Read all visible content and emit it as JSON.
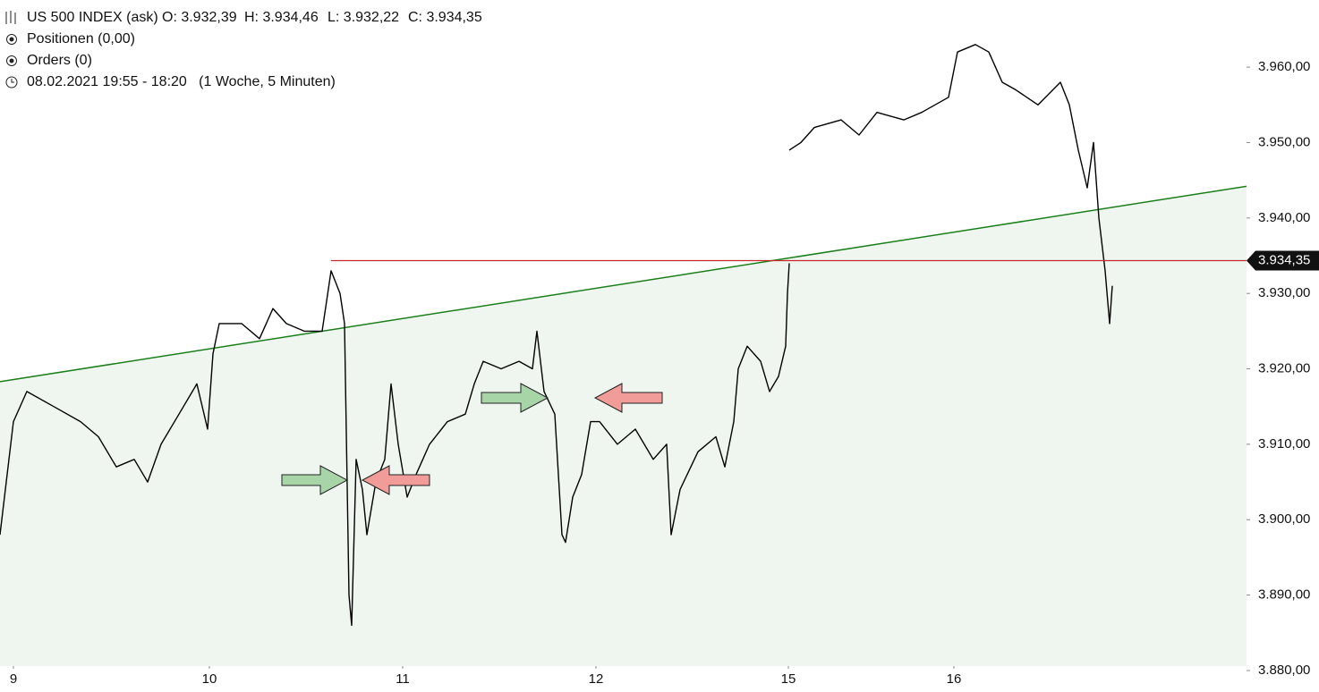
{
  "chart_data": {
    "type": "line",
    "title": "US 500 INDEX (ask)",
    "info": [
      "O: 3.932,39",
      "H: 3.934,46",
      "L: 3.932,22",
      "C: 3.934,35"
    ],
    "positions": "Positionen (0,00)",
    "orders": "Orders (0)",
    "period": "08.02.2021 19:55 - 18:20   (1 Woche, 5 Minuten)",
    "xlim": [
      0,
      1393
    ],
    "ylim": [
      3880,
      3968.9
    ],
    "xticks": [
      {
        "value": 15,
        "label": "9"
      },
      {
        "value": 234,
        "label": "10"
      },
      {
        "value": 450,
        "label": "11"
      },
      {
        "value": 666,
        "label": "12"
      },
      {
        "value": 881,
        "label": "15"
      },
      {
        "value": 1066,
        "label": "16"
      }
    ],
    "yticks": [
      {
        "value": 3880,
        "label": "3.880,00"
      },
      {
        "value": 3890,
        "label": "3.890,00"
      },
      {
        "value": 3900,
        "label": "3.900,00"
      },
      {
        "value": 3910,
        "label": "3.910,00"
      },
      {
        "value": 3920,
        "label": "3.920,00"
      },
      {
        "value": 3930,
        "label": "3.930,00"
      },
      {
        "value": 3940,
        "label": "3.940,00"
      },
      {
        "value": 3950,
        "label": "3.950,00"
      },
      {
        "value": 3960,
        "label": "3.960,00"
      }
    ],
    "x": [
      0,
      15,
      30,
      60,
      90,
      110,
      130,
      150,
      165,
      180,
      200,
      220,
      232,
      238,
      245,
      270,
      290,
      305,
      320,
      340,
      360,
      370,
      380,
      385,
      390,
      393,
      398,
      405,
      410,
      420,
      430,
      437,
      445,
      455,
      465,
      480,
      500,
      520,
      530,
      540,
      560,
      580,
      595,
      600,
      608,
      620,
      628,
      632,
      640,
      650,
      660,
      670,
      690,
      710,
      730,
      745,
      750,
      760,
      780,
      800,
      810,
      820,
      825,
      835,
      850,
      860,
      870,
      878,
      880,
      882,
      882,
      882,
      895,
      910,
      940,
      960,
      980,
      1010,
      1030,
      1060,
      1070,
      1090,
      1105,
      1120,
      1135,
      1160,
      1185,
      1195,
      1205,
      1215,
      1222,
      1228,
      1235,
      1240,
      1243
    ],
    "series": [
      {
        "name": "US 500 INDEX (ask)",
        "color": "#000000",
        "values": [
          3898,
          3913,
          3917,
          3915,
          3913,
          3911,
          3907,
          3908,
          3905,
          3910,
          3914,
          3918,
          3912,
          3922,
          3926,
          3926,
          3924,
          3928,
          3926,
          3925,
          3925,
          3933,
          3930,
          3926,
          3890,
          3886,
          3908,
          3904,
          3898,
          3905,
          3908,
          3918,
          3910,
          3903,
          3906,
          3910,
          3913,
          3914,
          3918,
          3921,
          3920,
          3921,
          3920,
          3925,
          3917,
          3914,
          3898,
          3897,
          3903,
          3906,
          3913,
          3913,
          3910,
          3912,
          3908,
          3910,
          3898,
          3904,
          3909,
          3911,
          3907,
          3913,
          3920,
          3923,
          3921,
          3917,
          3919,
          3923,
          3930,
          3934,
          null,
          3949,
          3950,
          3952,
          3953,
          3951,
          3954,
          3953,
          3954,
          3956,
          3962,
          3963,
          3962,
          3958,
          3957,
          3955,
          3958,
          3955,
          3949,
          3944,
          3950,
          3940,
          3933,
          3926,
          3931
        ]
      }
    ],
    "trendline": {
      "x": [
        0,
        1393
      ],
      "values": [
        3918.3,
        3944.2
      ],
      "color": "#1a7f1a"
    },
    "last_price": {
      "value": 3934.35,
      "label": "3.934,35",
      "color": "#c62828",
      "x_start": 370
    },
    "fill_color": "#eef6ef"
  }
}
